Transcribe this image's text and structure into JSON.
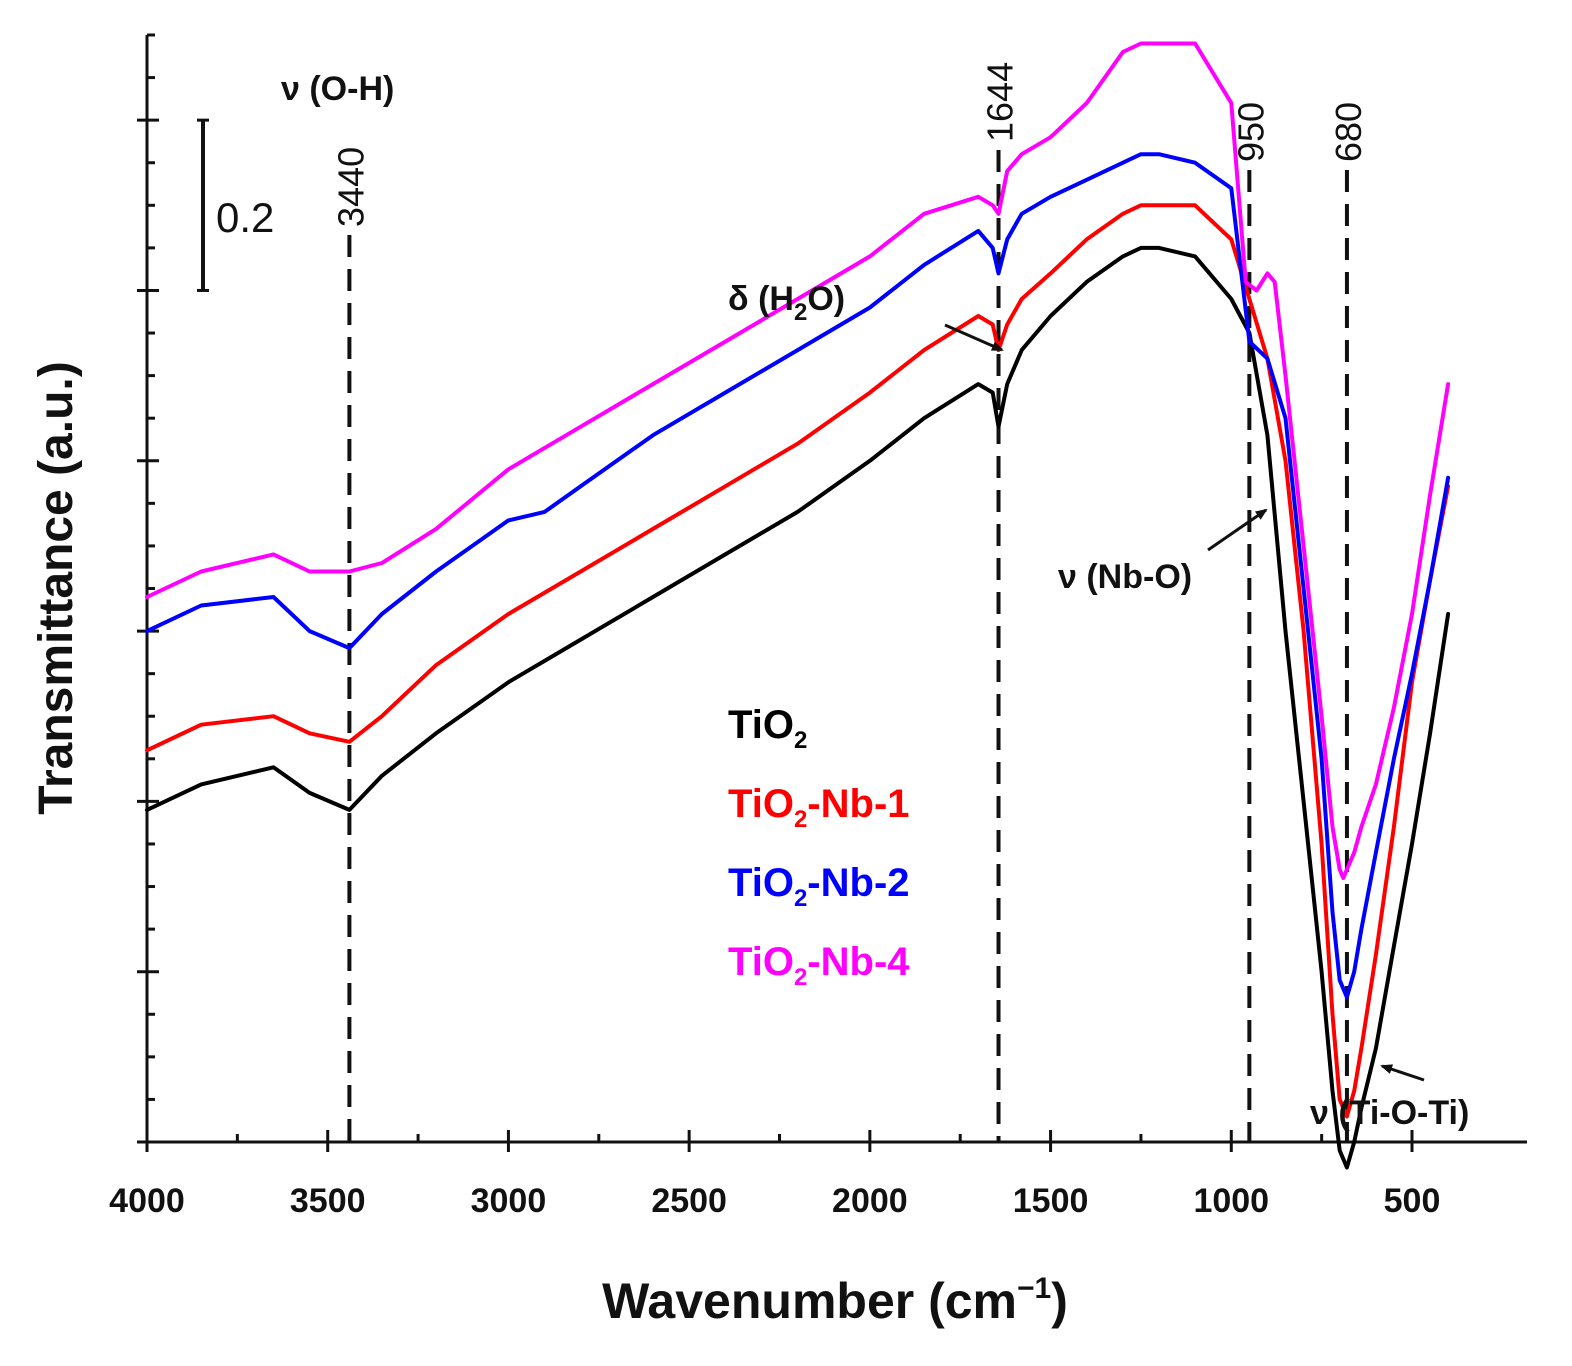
{
  "chart_data": {
    "type": "line",
    "xlabel": "Wavenumber (cm",
    "xlabel_sup": "−1",
    "xlabel_close": ")",
    "ylabel": "Transmittance (a.u.)",
    "xlim": [
      4000,
      300
    ],
    "ylim": [
      0,
      1.3
    ],
    "x_ticks": [
      4000,
      3500,
      3000,
      2500,
      2000,
      1500,
      1000,
      500
    ],
    "x_tick_labels": [
      "4000",
      "3500",
      "3000",
      "2500",
      "2000",
      "1500",
      "1000",
      "500"
    ],
    "scale_bar": {
      "value": 0.2,
      "label": "0.2",
      "y_bottom": 1.0
    },
    "reference_lines": [
      {
        "x": 3440,
        "label": "3440"
      },
      {
        "x": 1644,
        "label": "1644"
      },
      {
        "x": 950,
        "label": "950"
      },
      {
        "x": 680,
        "label": "680"
      }
    ],
    "annotations": [
      {
        "name": "oh-stretch",
        "base": "ν (O-H)",
        "sub": "",
        "tail": ""
      },
      {
        "name": "h2o-bend",
        "base": "δ (H",
        "sub": "2",
        "tail": "O)"
      },
      {
        "name": "nbo-stretch",
        "base": "ν (Nb-O)",
        "sub": "",
        "tail": ""
      },
      {
        "name": "tioti-stretch",
        "base": "ν (Ti-O-Ti)",
        "sub": "",
        "tail": ""
      }
    ],
    "series": [
      {
        "name": "TiO2",
        "label_base": "TiO",
        "label_sub": "2",
        "label_tail": "",
        "color": "#000000",
        "x": [
          4000,
          3850,
          3650,
          3550,
          3440,
          3350,
          3200,
          3000,
          2800,
          2600,
          2400,
          2200,
          2000,
          1850,
          1700,
          1660,
          1644,
          1620,
          1580,
          1500,
          1400,
          1300,
          1250,
          1200,
          1100,
          1000,
          950,
          900,
          850,
          800,
          750,
          720,
          700,
          690,
          680,
          660,
          640,
          600,
          550,
          500,
          450,
          400
        ],
        "y": [
          0.39,
          0.42,
          0.44,
          0.41,
          0.39,
          0.43,
          0.48,
          0.54,
          0.59,
          0.64,
          0.69,
          0.74,
          0.8,
          0.85,
          0.89,
          0.88,
          0.84,
          0.89,
          0.93,
          0.97,
          1.01,
          1.04,
          1.05,
          1.05,
          1.04,
          0.99,
          0.95,
          0.83,
          0.6,
          0.4,
          0.2,
          0.06,
          -0.01,
          -0.02,
          -0.03,
          0.0,
          0.04,
          0.11,
          0.23,
          0.35,
          0.48,
          0.62
        ]
      },
      {
        "name": "TiO2-Nb-1",
        "label_base": "TiO",
        "label_sub": "2",
        "label_tail": "-Nb-1",
        "color": "#ff0000",
        "x": [
          4000,
          3850,
          3650,
          3550,
          3440,
          3350,
          3200,
          3000,
          2800,
          2600,
          2400,
          2200,
          2000,
          1850,
          1700,
          1660,
          1644,
          1620,
          1580,
          1500,
          1400,
          1300,
          1250,
          1200,
          1100,
          1000,
          950,
          900,
          850,
          800,
          750,
          720,
          700,
          690,
          680,
          660,
          640,
          600,
          550,
          500,
          450,
          400
        ],
        "y": [
          0.46,
          0.49,
          0.5,
          0.48,
          0.47,
          0.5,
          0.56,
          0.62,
          0.67,
          0.72,
          0.77,
          0.82,
          0.88,
          0.93,
          0.97,
          0.96,
          0.93,
          0.96,
          0.99,
          1.02,
          1.06,
          1.09,
          1.1,
          1.1,
          1.1,
          1.06,
          0.99,
          0.92,
          0.8,
          0.6,
          0.35,
          0.15,
          0.05,
          0.04,
          0.03,
          0.06,
          0.11,
          0.22,
          0.37,
          0.54,
          0.66,
          0.77
        ]
      },
      {
        "name": "TiO2-Nb-2",
        "label_base": "TiO",
        "label_sub": "2",
        "label_tail": "-Nb-2",
        "color": "#0000ff",
        "x": [
          4000,
          3850,
          3650,
          3550,
          3440,
          3350,
          3200,
          3000,
          2900,
          2800,
          2600,
          2400,
          2200,
          2000,
          1850,
          1700,
          1660,
          1644,
          1620,
          1580,
          1500,
          1400,
          1300,
          1250,
          1200,
          1100,
          1000,
          950,
          900,
          850,
          800,
          750,
          720,
          700,
          690,
          680,
          660,
          640,
          600,
          550,
          500,
          450,
          400
        ],
        "y": [
          0.6,
          0.63,
          0.64,
          0.6,
          0.58,
          0.62,
          0.67,
          0.73,
          0.74,
          0.77,
          0.83,
          0.88,
          0.93,
          0.98,
          1.03,
          1.07,
          1.05,
          1.02,
          1.06,
          1.09,
          1.11,
          1.13,
          1.15,
          1.16,
          1.16,
          1.15,
          1.12,
          0.94,
          0.92,
          0.85,
          0.65,
          0.45,
          0.27,
          0.19,
          0.18,
          0.17,
          0.2,
          0.25,
          0.34,
          0.45,
          0.55,
          0.66,
          0.78
        ]
      },
      {
        "name": "TiO2-Nb-4",
        "label_base": "TiO",
        "label_sub": "2",
        "label_tail": "-Nb-4",
        "color": "#ff00ff",
        "x": [
          4000,
          3850,
          3650,
          3550,
          3440,
          3350,
          3200,
          3000,
          2800,
          2600,
          2400,
          2200,
          2000,
          1850,
          1700,
          1660,
          1644,
          1620,
          1580,
          1500,
          1400,
          1300,
          1250,
          1200,
          1100,
          1000,
          960,
          930,
          900,
          880,
          850,
          800,
          750,
          720,
          700,
          690,
          680,
          660,
          640,
          600,
          550,
          500,
          450,
          400
        ],
        "y": [
          0.64,
          0.67,
          0.69,
          0.67,
          0.67,
          0.68,
          0.72,
          0.79,
          0.84,
          0.89,
          0.94,
          0.99,
          1.04,
          1.09,
          1.11,
          1.1,
          1.09,
          1.14,
          1.16,
          1.18,
          1.22,
          1.28,
          1.29,
          1.29,
          1.29,
          1.22,
          1.01,
          1.0,
          1.02,
          1.01,
          0.9,
          0.7,
          0.5,
          0.37,
          0.32,
          0.31,
          0.32,
          0.34,
          0.37,
          0.42,
          0.51,
          0.62,
          0.76,
          0.89
        ]
      }
    ]
  }
}
